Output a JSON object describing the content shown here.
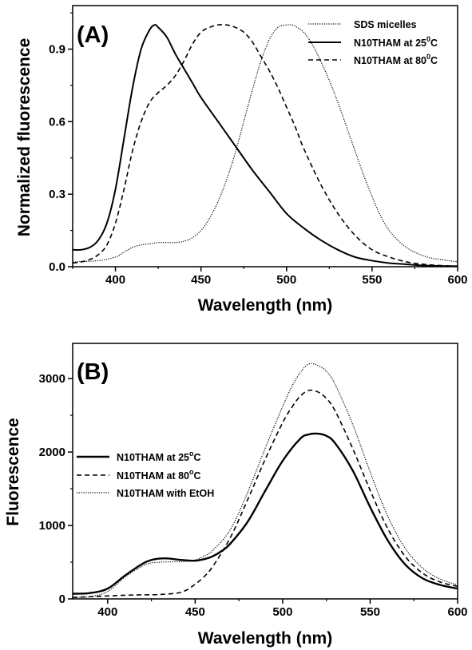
{
  "chart_data": [
    {
      "type": "line",
      "panel_label": "(A)",
      "xlabel": "Wavelength (nm)",
      "ylabel": "Normalized fluorescence",
      "xlim": [
        375,
        600
      ],
      "ylim": [
        0,
        1.08
      ],
      "x_ticks": [
        400,
        450,
        500,
        550,
        600
      ],
      "y_ticks": [
        0.0,
        0.3,
        0.6,
        0.9
      ],
      "x_tick_labels": [
        "400",
        "450",
        "500",
        "550",
        "600"
      ],
      "y_tick_labels": [
        "0.0",
        "0.3",
        "0.6",
        "0.9"
      ],
      "legend_position": "top-right",
      "series": [
        {
          "name": "SDS micelles",
          "name_main": "SDS micelles",
          "name_sup": "",
          "name_tail": "",
          "style": "dotted",
          "x": [
            375,
            390,
            400,
            405,
            410,
            415,
            420,
            425,
            430,
            435,
            440,
            445,
            450,
            455,
            460,
            465,
            470,
            475,
            480,
            485,
            490,
            495,
            500,
            503,
            505,
            510,
            515,
            520,
            525,
            530,
            535,
            540,
            545,
            550,
            555,
            560,
            565,
            570,
            575,
            580,
            585,
            590,
            595,
            600
          ],
          "y": [
            0.02,
            0.025,
            0.04,
            0.06,
            0.08,
            0.09,
            0.095,
            0.1,
            0.1,
            0.1,
            0.105,
            0.12,
            0.15,
            0.2,
            0.27,
            0.36,
            0.47,
            0.6,
            0.73,
            0.85,
            0.94,
            0.99,
            1.0,
            1.0,
            0.995,
            0.97,
            0.92,
            0.85,
            0.77,
            0.68,
            0.58,
            0.48,
            0.38,
            0.29,
            0.21,
            0.15,
            0.11,
            0.08,
            0.06,
            0.045,
            0.035,
            0.03,
            0.025,
            0.02
          ]
        },
        {
          "name": "N10THAM at 25°C",
          "name_main": "N10THAM at 25",
          "name_sup": "0",
          "name_tail": "C",
          "style": "solid",
          "x": [
            375,
            380,
            385,
            390,
            395,
            400,
            405,
            410,
            415,
            420,
            423,
            425,
            430,
            435,
            440,
            445,
            450,
            460,
            470,
            480,
            490,
            500,
            510,
            520,
            530,
            540,
            550,
            560,
            570,
            580,
            590,
            600
          ],
          "y": [
            0.07,
            0.07,
            0.08,
            0.11,
            0.18,
            0.32,
            0.53,
            0.74,
            0.9,
            0.98,
            1.0,
            0.99,
            0.95,
            0.88,
            0.82,
            0.76,
            0.7,
            0.6,
            0.5,
            0.4,
            0.31,
            0.22,
            0.16,
            0.11,
            0.07,
            0.04,
            0.025,
            0.015,
            0.01,
            0.005,
            0.003,
            0.002
          ]
        },
        {
          "name": "N10THAM at 80°C",
          "name_main": "N10THAM at 80",
          "name_sup": "0",
          "name_tail": "C",
          "style": "dashed",
          "x": [
            375,
            380,
            385,
            390,
            395,
            400,
            405,
            410,
            415,
            420,
            425,
            430,
            435,
            440,
            445,
            450,
            455,
            460,
            465,
            470,
            475,
            480,
            485,
            490,
            495,
            500,
            505,
            510,
            520,
            530,
            540,
            550,
            560,
            570,
            580,
            590,
            600
          ],
          "y": [
            0.015,
            0.02,
            0.03,
            0.05,
            0.09,
            0.18,
            0.32,
            0.48,
            0.6,
            0.68,
            0.72,
            0.75,
            0.79,
            0.85,
            0.92,
            0.97,
            0.99,
            1.0,
            1.0,
            0.99,
            0.97,
            0.93,
            0.87,
            0.81,
            0.74,
            0.66,
            0.58,
            0.49,
            0.34,
            0.22,
            0.13,
            0.07,
            0.04,
            0.02,
            0.01,
            0.005,
            0.002
          ]
        }
      ]
    },
    {
      "type": "line",
      "panel_label": "(B)",
      "xlabel": "Wavelength (nm)",
      "ylabel": "Fluorescence",
      "xlim": [
        380,
        600
      ],
      "ylim": [
        0,
        3480
      ],
      "x_ticks": [
        400,
        450,
        500,
        550,
        600
      ],
      "y_ticks": [
        0,
        1000,
        2000,
        3000
      ],
      "x_tick_labels": [
        "400",
        "450",
        "500",
        "550",
        "600"
      ],
      "y_tick_labels": [
        "0",
        "1000",
        "2000",
        "3000"
      ],
      "legend_position": "middle-left",
      "series": [
        {
          "name": "N10THAM at 25°C",
          "name_main": "N10THAM at 25",
          "name_sup": "o",
          "name_tail": "C",
          "style": "solid-thick",
          "x": [
            380,
            390,
            400,
            410,
            420,
            425,
            430,
            435,
            440,
            445,
            450,
            455,
            460,
            465,
            470,
            480,
            490,
            500,
            510,
            515,
            520,
            525,
            530,
            540,
            550,
            560,
            570,
            580,
            590,
            600
          ],
          "y": [
            70,
            80,
            140,
            320,
            480,
            530,
            550,
            550,
            535,
            525,
            520,
            540,
            580,
            650,
            750,
            1050,
            1470,
            1880,
            2180,
            2240,
            2250,
            2220,
            2120,
            1750,
            1250,
            800,
            470,
            280,
            190,
            140
          ]
        },
        {
          "name": "N10THAM at 80°C",
          "name_main": "N10THAM at 80",
          "name_sup": "o",
          "name_tail": "C",
          "style": "dashed",
          "x": [
            380,
            390,
            400,
            410,
            420,
            430,
            440,
            445,
            450,
            455,
            460,
            470,
            480,
            490,
            500,
            505,
            510,
            515,
            520,
            525,
            530,
            540,
            550,
            560,
            570,
            580,
            590,
            600
          ],
          "y": [
            20,
            30,
            40,
            50,
            55,
            60,
            80,
            120,
            200,
            300,
            440,
            830,
            1350,
            1900,
            2400,
            2600,
            2760,
            2840,
            2820,
            2730,
            2560,
            2050,
            1480,
            960,
            580,
            350,
            230,
            170
          ]
        },
        {
          "name": "N10THAM with EtOH",
          "name_main": "N10THAM with EtOH",
          "name_sup": "",
          "name_tail": "",
          "style": "dotted",
          "x": [
            380,
            390,
            400,
            410,
            420,
            425,
            430,
            435,
            440,
            445,
            450,
            455,
            460,
            470,
            480,
            490,
            500,
            505,
            510,
            515,
            520,
            525,
            530,
            540,
            550,
            560,
            570,
            580,
            590,
            600
          ],
          "y": [
            20,
            30,
            100,
            300,
            450,
            490,
            500,
            505,
            505,
            510,
            530,
            580,
            660,
            940,
            1450,
            2050,
            2620,
            2880,
            3080,
            3200,
            3180,
            3100,
            2920,
            2380,
            1730,
            1130,
            690,
            420,
            270,
            190
          ]
        }
      ]
    }
  ]
}
